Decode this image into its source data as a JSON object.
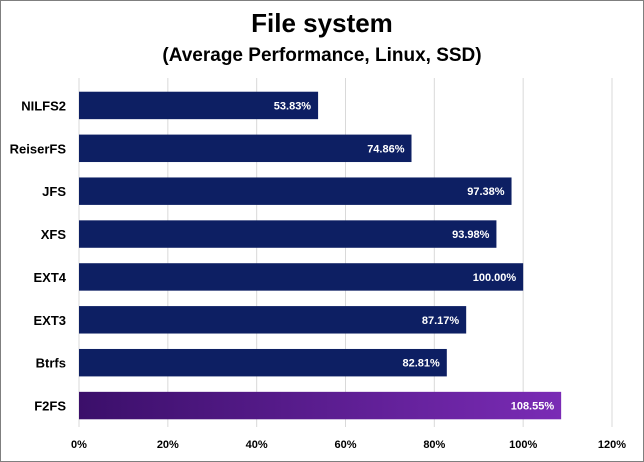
{
  "chart_data": {
    "type": "bar",
    "orientation": "horizontal",
    "title": "File system",
    "subtitle": "(Average Performance, Linux, SSD)",
    "categories": [
      "NILFS2",
      "ReiserFS",
      "JFS",
      "XFS",
      "EXT4",
      "EXT3",
      "Btrfs",
      "F2FS"
    ],
    "values": [
      53.83,
      74.86,
      97.38,
      93.98,
      100.0,
      87.17,
      82.81,
      108.55
    ],
    "data_labels": [
      "53.83%",
      "74.86%",
      "97.38%",
      "93.98%",
      "100.00%",
      "87.17%",
      "82.81%",
      "108.55%"
    ],
    "xlim": [
      0,
      120
    ],
    "x_ticks": [
      0,
      20,
      40,
      60,
      80,
      100,
      120
    ],
    "x_tick_labels": [
      "0%",
      "20%",
      "40%",
      "60%",
      "80%",
      "100%",
      "120%"
    ],
    "grid": true,
    "legend": false,
    "colors": {
      "bar": "#0d1f63",
      "highlight_start": "#3b0f6a",
      "highlight_end": "#7a2bb5",
      "grid": "#d9d9d9"
    },
    "highlight_category": "F2FS"
  }
}
